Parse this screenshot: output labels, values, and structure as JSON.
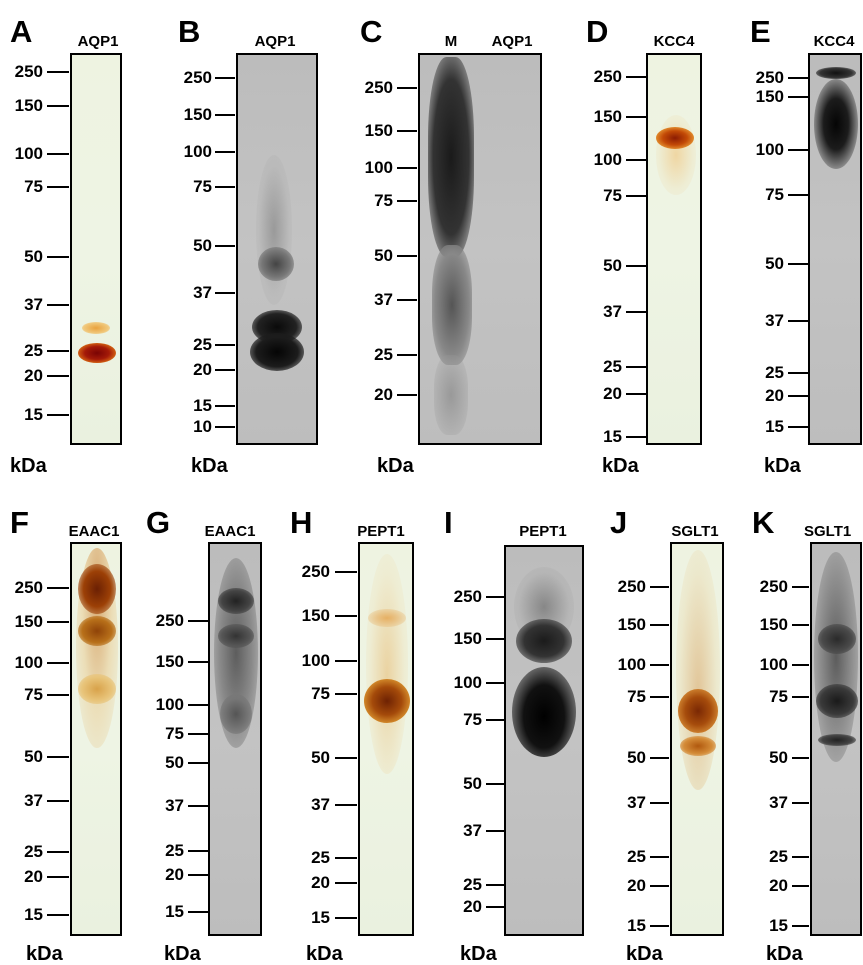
{
  "figure": {
    "unit_label": "kDa",
    "panels": [
      {
        "letter": "A",
        "lanes": [
          "AQP1"
        ],
        "style": "silver",
        "markers": [
          "250",
          "150",
          "100",
          "75",
          "50",
          "37",
          "25",
          "20",
          "15"
        ]
      },
      {
        "letter": "B",
        "lanes": [
          "AQP1"
        ],
        "style": "blot",
        "markers": [
          "250",
          "150",
          "100",
          "75",
          "50",
          "37",
          "25",
          "20",
          "15",
          "10"
        ]
      },
      {
        "letter": "C",
        "lanes": [
          "M",
          "AQP1"
        ],
        "style": "blot",
        "markers": [
          "250",
          "150",
          "100",
          "75",
          "50",
          "37",
          "25",
          "20"
        ]
      },
      {
        "letter": "D",
        "lanes": [
          "KCC4"
        ],
        "style": "silver",
        "markers": [
          "250",
          "150",
          "100",
          "75",
          "50",
          "37",
          "25",
          "20",
          "15"
        ]
      },
      {
        "letter": "E",
        "lanes": [
          "KCC4"
        ],
        "style": "blot",
        "markers": [
          "250",
          "150",
          "100",
          "75",
          "50",
          "37",
          "25",
          "20",
          "15"
        ]
      },
      {
        "letter": "F",
        "lanes": [
          "EAAC1"
        ],
        "style": "silver",
        "markers": [
          "250",
          "150",
          "100",
          "75",
          "50",
          "37",
          "25",
          "20",
          "15"
        ]
      },
      {
        "letter": "G",
        "lanes": [
          "EAAC1"
        ],
        "style": "blot",
        "markers": [
          "250",
          "150",
          "100",
          "75",
          "50",
          "37",
          "25",
          "20",
          "15"
        ]
      },
      {
        "letter": "H",
        "lanes": [
          "PEPT1"
        ],
        "style": "silver",
        "markers": [
          "250",
          "150",
          "100",
          "75",
          "50",
          "37",
          "25",
          "20",
          "15"
        ]
      },
      {
        "letter": "I",
        "lanes": [
          "PEPT1"
        ],
        "style": "blot",
        "markers": [
          "250",
          "150",
          "100",
          "75",
          "50",
          "37",
          "25",
          "20"
        ]
      },
      {
        "letter": "J",
        "lanes": [
          "SGLT1"
        ],
        "style": "silver",
        "markers": [
          "250",
          "150",
          "100",
          "75",
          "50",
          "37",
          "25",
          "20",
          "15"
        ]
      },
      {
        "letter": "K",
        "lanes": [
          "SGLT1"
        ],
        "style": "blot",
        "markers": [
          "250",
          "150",
          "100",
          "75",
          "50",
          "37",
          "25",
          "20",
          "15"
        ]
      }
    ]
  }
}
